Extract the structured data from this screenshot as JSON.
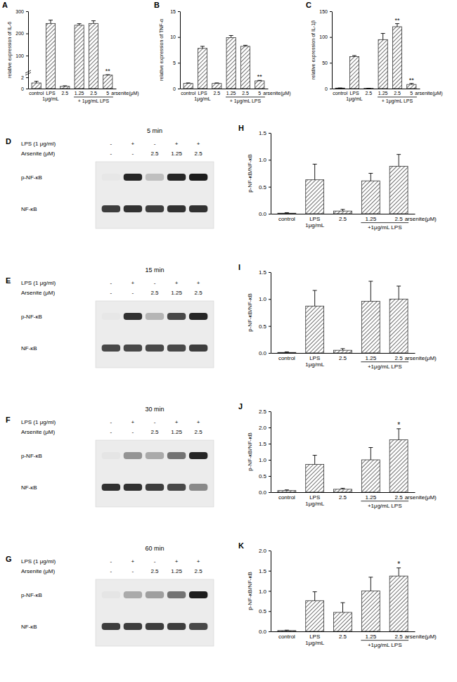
{
  "chart_data": [
    {
      "type": "bar",
      "panel": "A",
      "y_label": "relative expression of IL-6",
      "categories": [
        "control",
        "LPS",
        "2.5",
        "1.25",
        "2.5",
        "5"
      ],
      "category_sublabels": [
        null,
        "1μg/mL",
        null,
        null,
        null,
        null
      ],
      "x_label": "arsenite(μM)",
      "groups": [
        {
          "label": "+ 1μg/mL LPS",
          "categories": [
            3,
            4,
            5
          ]
        }
      ],
      "values": [
        1,
        245,
        0.4,
        237,
        245,
        12
      ],
      "errors": [
        0.3,
        15,
        0.1,
        7,
        12,
        2
      ],
      "significance": [
        null,
        null,
        null,
        null,
        null,
        "**"
      ],
      "color": "#333333",
      "ylim": [
        0,
        300
      ],
      "yticks": [
        0,
        2,
        100,
        200,
        300
      ]
    },
    {
      "type": "bar",
      "panel": "B",
      "y_label": "relative expression of TNF-α",
      "categories": [
        "control",
        "LPS",
        "2.5",
        "1.25",
        "2.5",
        "5"
      ],
      "category_sublabels": [
        null,
        "1μg/mL",
        null,
        null,
        null,
        null
      ],
      "x_label": "arsenite(μM)",
      "groups": [
        {
          "label": "+ 1μg/mL LPS",
          "categories": [
            3,
            4,
            5
          ]
        }
      ],
      "values": [
        1,
        7.8,
        1.0,
        9.9,
        8.2,
        1.5
      ],
      "errors": [
        0.1,
        0.4,
        0.1,
        0.4,
        0.2,
        0.1
      ],
      "significance": [
        null,
        null,
        null,
        null,
        null,
        "**"
      ],
      "color": "#333333",
      "ylim": [
        0,
        15
      ],
      "yticks": [
        0,
        5,
        10,
        15
      ]
    },
    {
      "type": "bar",
      "panel": "C",
      "y_label": "relative expression of IL-1β",
      "categories": [
        "control",
        "LPS",
        "2.5",
        "1.25",
        "2.5",
        "5"
      ],
      "category_sublabels": [
        null,
        "1μg/mL",
        null,
        null,
        null,
        null
      ],
      "x_label": "arsenite(μM)",
      "groups": [
        {
          "label": "+ 1μg/mL LPS",
          "categories": [
            3,
            4,
            5
          ]
        }
      ],
      "values": [
        1,
        62,
        0.5,
        95,
        120,
        8
      ],
      "errors": [
        0.2,
        2,
        0.1,
        12,
        6,
        2
      ],
      "significance": [
        null,
        null,
        null,
        null,
        "**",
        "**"
      ],
      "color": "#333333",
      "ylim": [
        0,
        150
      ],
      "yticks": [
        0,
        50,
        100,
        150
      ]
    },
    {
      "type": "blot",
      "panel": "D",
      "title": "5 min",
      "conditions": [
        {
          "label": "LPS (1 μg/ml)",
          "values": [
            "-",
            "+",
            "-",
            "+",
            "+"
          ]
        },
        {
          "label": "Arsenite (μM)",
          "values": [
            "-",
            "-",
            "2.5",
            "1.25",
            "2.5"
          ]
        }
      ],
      "bands": [
        {
          "name": "p-NF-κB",
          "values": [
            0.02,
            0.9,
            0.2,
            0.9,
            0.95
          ]
        },
        {
          "name": "NF-κB",
          "values": [
            0.8,
            0.85,
            0.8,
            0.85,
            0.85
          ]
        }
      ]
    },
    {
      "type": "blot",
      "panel": "E",
      "title": "15 min",
      "conditions": [
        {
          "label": "LPS (1 μg/ml)",
          "values": [
            "-",
            "+",
            "-",
            "+",
            "+"
          ]
        },
        {
          "label": "Arsenite (μM)",
          "values": [
            "-",
            "-",
            "2.5",
            "1.25",
            "2.5"
          ]
        }
      ],
      "bands": [
        {
          "name": "p-NF-κB",
          "values": [
            0.02,
            0.85,
            0.25,
            0.75,
            0.9
          ]
        },
        {
          "name": "NF-κB",
          "values": [
            0.75,
            0.75,
            0.75,
            0.75,
            0.8
          ]
        }
      ]
    },
    {
      "type": "blot",
      "panel": "F",
      "title": "30 min",
      "conditions": [
        {
          "label": "LPS (1 μg/ml)",
          "values": [
            "-",
            "+",
            "-",
            "+",
            "+"
          ]
        },
        {
          "label": "Arsenite (μM)",
          "values": [
            "-",
            "-",
            "2.5",
            "1.25",
            "2.5"
          ]
        }
      ],
      "bands": [
        {
          "name": "p-NF-κB",
          "values": [
            0.03,
            0.4,
            0.3,
            0.55,
            0.9
          ]
        },
        {
          "name": "NF-κB",
          "values": [
            0.85,
            0.85,
            0.8,
            0.75,
            0.45
          ]
        }
      ]
    },
    {
      "type": "blot",
      "panel": "G",
      "title": "60 min",
      "conditions": [
        {
          "label": "LPS (1 μg/ml)",
          "values": [
            "-",
            "+",
            "-",
            "+",
            "+"
          ]
        },
        {
          "label": "Arsenite (μM)",
          "values": [
            "-",
            "-",
            "2.5",
            "1.25",
            "2.5"
          ]
        }
      ],
      "bands": [
        {
          "name": "p-NF-κB",
          "values": [
            0.03,
            0.3,
            0.35,
            0.55,
            0.95
          ]
        },
        {
          "name": "NF-κB",
          "values": [
            0.8,
            0.8,
            0.8,
            0.8,
            0.75
          ]
        }
      ]
    },
    {
      "type": "bar",
      "panel": "H",
      "y_label": "p-NF-κB/NF-κB",
      "categories": [
        "control",
        "LPS",
        "2.5",
        "1.25",
        "2.5"
      ],
      "category_sublabels": [
        null,
        "1μg/mL",
        null,
        null,
        null
      ],
      "x_label": "arsenite(μM)",
      "groups": [
        {
          "label": "+1μg/mL LPS",
          "categories": [
            3,
            4
          ]
        }
      ],
      "values": [
        0.01,
        0.63,
        0.05,
        0.61,
        0.88
      ],
      "errors": [
        0.01,
        0.29,
        0.03,
        0.14,
        0.22
      ],
      "color": "#333333",
      "ylim": [
        0,
        1.5
      ],
      "yticks": [
        {
          "value": 0,
          "label": "0.0"
        },
        {
          "value": 0.5,
          "label": "0.5"
        },
        {
          "value": 1,
          "label": "1.0"
        },
        {
          "value": 1.5,
          "label": "1.5"
        }
      ]
    },
    {
      "type": "bar",
      "panel": "I",
      "y_label": "p-NF-κB/NF-κB",
      "categories": [
        "control",
        "LPS",
        "2.5",
        "1.25",
        "2.5"
      ],
      "category_sublabels": [
        null,
        "1μg/mL",
        null,
        null,
        null
      ],
      "x_label": "arsenite(μM)",
      "groups": [
        {
          "label": "+1μg/mL LPS",
          "categories": [
            3,
            4
          ]
        }
      ],
      "values": [
        0.01,
        0.87,
        0.05,
        0.96,
        1.0
      ],
      "errors": [
        0.01,
        0.29,
        0.03,
        0.37,
        0.24
      ],
      "color": "#333333",
      "ylim": [
        0,
        1.5
      ],
      "yticks": [
        {
          "value": 0,
          "label": "0.0"
        },
        {
          "value": 0.5,
          "label": "0.5"
        },
        {
          "value": 1,
          "label": "1.0"
        },
        {
          "value": 1.5,
          "label": "1.5"
        }
      ]
    },
    {
      "type": "bar",
      "panel": "J",
      "y_label": "p-NF-κB/NF-κB",
      "categories": [
        "control",
        "LPS",
        "2.5",
        "1.25",
        "2.5"
      ],
      "category_sublabels": [
        null,
        "1μg/mL",
        null,
        null,
        null
      ],
      "x_label": "arsenite(μM)",
      "groups": [
        {
          "label": "+1μg/mL LPS",
          "categories": [
            3,
            4
          ]
        }
      ],
      "values": [
        0.05,
        0.86,
        0.09,
        1.0,
        1.62
      ],
      "errors": [
        0.02,
        0.28,
        0.03,
        0.38,
        0.34
      ],
      "significance": [
        null,
        null,
        null,
        null,
        "*"
      ],
      "color": "#333333",
      "ylim": [
        0,
        2.5
      ],
      "yticks": [
        {
          "value": 0,
          "label": "0.0"
        },
        {
          "value": 0.5,
          "label": "0.5"
        },
        {
          "value": 1,
          "label": "1.0"
        },
        {
          "value": 1.5,
          "label": "1.5"
        },
        {
          "value": 2,
          "label": "2.0"
        },
        {
          "value": 2.5,
          "label": "2.5"
        }
      ]
    },
    {
      "type": "bar",
      "panel": "K",
      "y_label": "p-NF-κB/NF-κB",
      "categories": [
        "control",
        "LPS",
        "2.5",
        "1.25",
        "2.5"
      ],
      "category_sublabels": [
        null,
        "1μg/mL",
        null,
        null,
        null
      ],
      "x_label": "arsenite(μM)",
      "groups": [
        {
          "label": "+1μg/mL LPS",
          "categories": [
            3,
            4
          ]
        }
      ],
      "values": [
        0.02,
        0.76,
        0.47,
        1.0,
        1.37
      ],
      "errors": [
        0.01,
        0.22,
        0.24,
        0.34,
        0.2
      ],
      "significance": [
        null,
        null,
        null,
        null,
        "*"
      ],
      "color": "#333333",
      "ylim": [
        0,
        2
      ],
      "yticks": [
        {
          "value": 0,
          "label": "0.0"
        },
        {
          "value": 0.5,
          "label": "0.5"
        },
        {
          "value": 1,
          "label": "1.0"
        },
        {
          "value": 1.5,
          "label": "1.5"
        },
        {
          "value": 2,
          "label": "2.0"
        }
      ]
    }
  ]
}
